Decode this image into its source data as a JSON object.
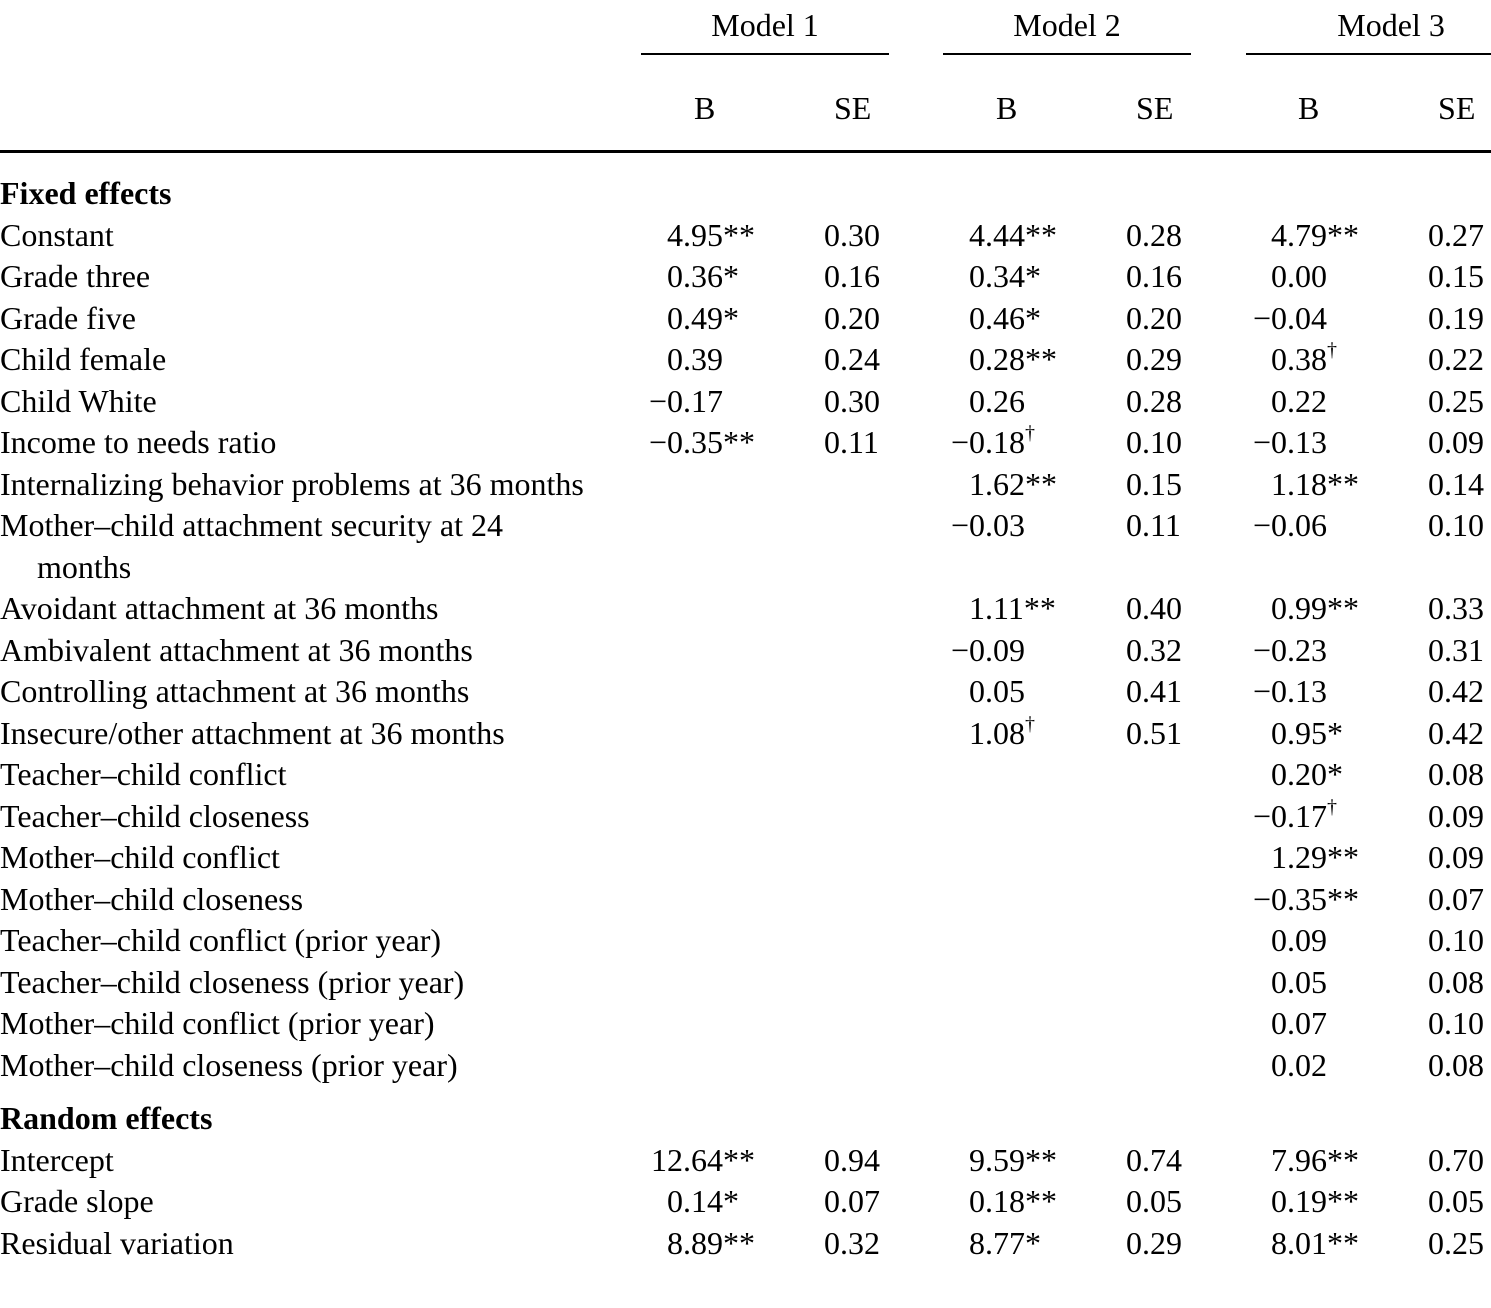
{
  "header": {
    "models": [
      "Model 1",
      "Model 2",
      "Model 3"
    ],
    "columns": [
      "B",
      "SE",
      "B",
      "SE",
      "B",
      "SE"
    ]
  },
  "sections": [
    {
      "title": "Fixed effects",
      "rows": [
        {
          "label": "Constant",
          "values": [
            "4.95**",
            "0.30",
            "4.44**",
            "0.28",
            "4.79**",
            "0.27"
          ]
        },
        {
          "label": "Grade three",
          "values": [
            "0.36*",
            "0.16",
            "0.34*",
            "0.16",
            "0.00",
            "0.15"
          ]
        },
        {
          "label": "Grade five",
          "values": [
            "0.49*",
            "0.20",
            "0.46*",
            "0.20",
            "−0.04",
            "0.19"
          ]
        },
        {
          "label": "Child female",
          "values": [
            "0.39",
            "0.24",
            "0.28**",
            "0.29",
            "0.38†",
            "0.22"
          ]
        },
        {
          "label": "Child White",
          "values": [
            "−0.17",
            "0.30",
            "0.26",
            "0.28",
            "0.22",
            "0.25"
          ]
        },
        {
          "label": "Income to needs ratio",
          "values": [
            "−0.35**",
            "0.11",
            "−0.18†",
            "0.10",
            "−0.13",
            "0.09"
          ]
        },
        {
          "label": "Internalizing behavior problems at 36 months",
          "values": [
            null,
            null,
            "1.62**",
            "0.15",
            "1.18**",
            "0.14"
          ]
        },
        {
          "label": "Mother–child attachment security at 24 months",
          "values": [
            null,
            null,
            "−0.03",
            "0.11",
            "−0.06",
            "0.10"
          ]
        },
        {
          "label": "Avoidant attachment at 36 months",
          "values": [
            null,
            null,
            "1.11**",
            "0.40",
            "0.99**",
            "0.33"
          ]
        },
        {
          "label": "Ambivalent attachment at 36 months",
          "values": [
            null,
            null,
            "−0.09",
            "0.32",
            "−0.23",
            "0.31"
          ]
        },
        {
          "label": "Controlling attachment at 36 months",
          "values": [
            null,
            null,
            "0.05",
            "0.41",
            "−0.13",
            "0.42"
          ]
        },
        {
          "label": "Insecure/other attachment at 36 months",
          "values": [
            null,
            null,
            "1.08†",
            "0.51",
            "0.95*",
            "0.42"
          ]
        },
        {
          "label": "Teacher–child conflict",
          "values": [
            null,
            null,
            null,
            null,
            "0.20*",
            "0.08"
          ]
        },
        {
          "label": "Teacher–child closeness",
          "values": [
            null,
            null,
            null,
            null,
            "−0.17†",
            "0.09"
          ]
        },
        {
          "label": "Mother–child conflict",
          "values": [
            null,
            null,
            null,
            null,
            "1.29**",
            "0.09"
          ]
        },
        {
          "label": "Mother–child closeness",
          "values": [
            null,
            null,
            null,
            null,
            "−0.35**",
            "0.07"
          ]
        },
        {
          "label": "Teacher–child conflict (prior year)",
          "values": [
            null,
            null,
            null,
            null,
            "0.09",
            "0.10"
          ]
        },
        {
          "label": "Teacher–child closeness (prior year)",
          "values": [
            null,
            null,
            null,
            null,
            "0.05",
            "0.08"
          ]
        },
        {
          "label": "Mother–child conflict (prior year)",
          "values": [
            null,
            null,
            null,
            null,
            "0.07",
            "0.10"
          ]
        },
        {
          "label": "Mother–child closeness (prior year)",
          "values": [
            null,
            null,
            null,
            null,
            "0.02",
            "0.08"
          ]
        }
      ]
    },
    {
      "title": "Random effects",
      "rows": [
        {
          "label": "Intercept",
          "values": [
            "12.64**",
            "0.94",
            "9.59**",
            "0.74",
            "7.96**",
            "0.70"
          ]
        },
        {
          "label": "Grade slope",
          "values": [
            "0.14*",
            "0.07",
            "0.18**",
            "0.05",
            "0.19**",
            "0.05"
          ]
        },
        {
          "label": "Residual variation",
          "values": [
            "8.89**",
            "0.32",
            "8.77*",
            "0.29",
            "8.01**",
            "0.25"
          ]
        }
      ]
    }
  ]
}
